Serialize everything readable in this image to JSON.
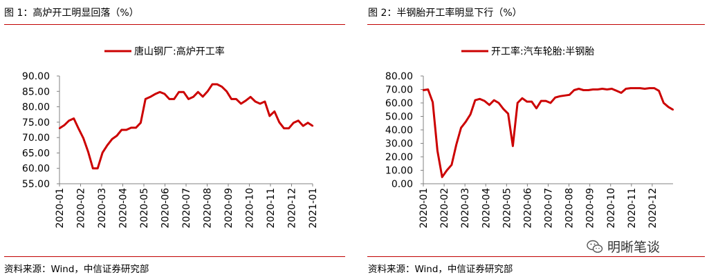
{
  "panels": [
    {
      "title": "图 1：高炉开工明显回落（%）",
      "source": "资料来源：Wind，中信证券研究部"
    },
    {
      "title": "图 2：半钢胎开工率明显下行（%）",
      "source": "资料来源：Wind，中信证券研究部"
    }
  ],
  "watermark": {
    "text": "明晰笔谈",
    "icon": "wechat-icon"
  },
  "colors": {
    "accent": "#c00000",
    "series": "#cc0000",
    "axis": "#808080"
  },
  "chart_data": [
    {
      "type": "line",
      "legend": "唐山钢厂:高炉开工率",
      "ylim": [
        55,
        90
      ],
      "yticks": [
        "90.00",
        "85.00",
        "80.00",
        "75.00",
        "70.00",
        "65.00",
        "60.00",
        "55.00"
      ],
      "xticks": [
        "2020-01",
        "2020-02",
        "2020-03",
        "2020-04",
        "2020-05",
        "2020-06",
        "2020-07",
        "2020-08",
        "2020-09",
        "2020-10",
        "2020-11",
        "2020-12",
        "2021-01"
      ],
      "values": [
        73.0,
        74.0,
        75.5,
        76.2,
        72.9,
        69.8,
        65.4,
        60.0,
        60.0,
        65.1,
        67.5,
        69.5,
        70.6,
        72.5,
        72.5,
        73.2,
        73.2,
        74.8,
        82.5,
        83.2,
        84.1,
        84.8,
        84.2,
        82.5,
        82.5,
        84.8,
        84.8,
        82.5,
        83.2,
        84.8,
        83.3,
        85.0,
        87.3,
        87.3,
        86.5,
        85.0,
        82.5,
        82.5,
        81.0,
        82.0,
        83.2,
        81.7,
        81.0,
        81.7,
        77.0,
        78.5,
        75.0,
        73.0,
        73.0,
        74.8,
        75.5,
        73.8,
        74.8,
        73.8
      ],
      "title": "",
      "xlabel": "",
      "ylabel": ""
    },
    {
      "type": "line",
      "legend": "开工率:汽车轮胎:半钢胎",
      "ylim": [
        0,
        80
      ],
      "yticks": [
        "80.00",
        "70.00",
        "60.00",
        "50.00",
        "40.00",
        "30.00",
        "20.00",
        "10.00",
        "0.00"
      ],
      "xticks": [
        "2020-01",
        "2020-02",
        "2020-03",
        "2020-04",
        "2020-05",
        "2020-06",
        "2020-07",
        "2020-08",
        "2020-09",
        "2020-10",
        "2020-11",
        "2020-12"
      ],
      "values": [
        69.5,
        70.0,
        60.5,
        24.5,
        5.0,
        10.0,
        14.0,
        29.0,
        41.5,
        46.0,
        51.5,
        62.0,
        63.0,
        61.5,
        58.5,
        62.0,
        60.0,
        55.5,
        52.0,
        28.0,
        60.0,
        63.5,
        61.0,
        61.0,
        56.0,
        61.5,
        61.5,
        60.0,
        64.0,
        65.0,
        65.5,
        66.0,
        69.5,
        70.5,
        69.5,
        69.5,
        70.0,
        70.0,
        70.5,
        70.0,
        70.5,
        69.0,
        67.5,
        70.5,
        71.0,
        71.0,
        71.0,
        70.5,
        71.0,
        71.0,
        69.0,
        60.0,
        57.0,
        55.0
      ],
      "title": "",
      "xlabel": "",
      "ylabel": ""
    }
  ]
}
